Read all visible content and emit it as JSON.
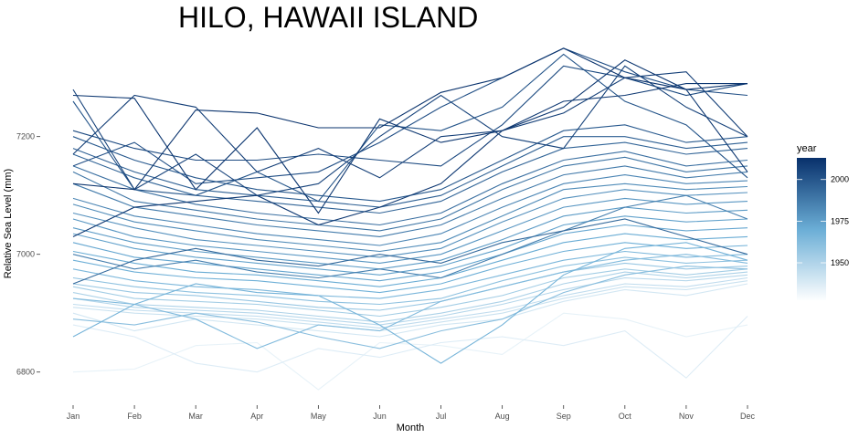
{
  "chart_data": {
    "type": "line",
    "title": "HILO,  HAWAII ISLAND",
    "xlabel": "Month",
    "ylabel": "Relative Sea Level (mm)",
    "categories": [
      "Jan",
      "Feb",
      "Mar",
      "Apr",
      "May",
      "Jun",
      "Jul",
      "Aug",
      "Sep",
      "Oct",
      "Nov",
      "Dec"
    ],
    "yticks": [
      6800,
      7000,
      7200
    ],
    "ylim": [
      6750,
      7370
    ],
    "grid": false,
    "legend": {
      "title": "year",
      "position": "right",
      "type": "colorbar",
      "range": [
        1927,
        2013
      ],
      "ticks": [
        1950,
        1975,
        2000
      ],
      "color_low": "#ffffff",
      "color_high": "#08306b"
    },
    "series": [
      {
        "year": 1929,
        "values": [
          6800,
          6805,
          6845,
          6850,
          6770,
          6850,
          6845,
          6830,
          6900,
          6890,
          6860,
          6880
        ]
      },
      {
        "year": 1932,
        "values": [
          6880,
          6860,
          6815,
          6800,
          6840,
          6825,
          6850,
          6860,
          6845,
          6870,
          6790,
          6895
        ]
      },
      {
        "year": 1935,
        "values": [
          6900,
          6870,
          6890,
          6880,
          6870,
          6860,
          6880,
          6890,
          6920,
          6940,
          6930,
          6950
        ]
      },
      {
        "year": 1938,
        "values": [
          6910,
          6900,
          6895,
          6890,
          6880,
          6870,
          6885,
          6900,
          6925,
          6945,
          6940,
          6955
        ]
      },
      {
        "year": 1941,
        "values": [
          6915,
          6905,
          6900,
          6895,
          6885,
          6875,
          6890,
          6905,
          6930,
          6950,
          6945,
          6960
        ]
      },
      {
        "year": 1944,
        "values": [
          6925,
          6910,
          6905,
          6900,
          6890,
          6880,
          6895,
          6915,
          6940,
          6960,
          6955,
          6965
        ]
      },
      {
        "year": 1947,
        "values": [
          6935,
          6915,
          6910,
          6905,
          6895,
          6885,
          6900,
          6920,
          6950,
          6970,
          6960,
          6970
        ]
      },
      {
        "year": 1950,
        "values": [
          6945,
          6925,
          6920,
          6915,
          6905,
          6895,
          6910,
          6930,
          6960,
          6975,
          6965,
          6975
        ]
      },
      {
        "year": 1953,
        "values": [
          6950,
          6935,
          6930,
          6920,
          6910,
          6905,
          6920,
          6945,
          6970,
          6985,
          6975,
          6980
        ]
      },
      {
        "year": 1956,
        "values": [
          6960,
          6945,
          6935,
          6930,
          6920,
          6915,
          6925,
          6955,
          6980,
          6995,
          6985,
          6990
        ]
      },
      {
        "year": 1958,
        "values": [
          6890,
          6880,
          6900,
          6885,
          6860,
          6840,
          6870,
          6890,
          6935,
          6965,
          6980,
          6975
        ]
      },
      {
        "year": 1960,
        "values": [
          6925,
          6915,
          6890,
          6840,
          6880,
          6870,
          6920,
          6945,
          6970,
          6990,
          7000,
          6985
        ]
      },
      {
        "year": 1962,
        "values": [
          6975,
          6955,
          6945,
          6940,
          6930,
          6925,
          6940,
          6965,
          6990,
          7005,
          6995,
          7000
        ]
      },
      {
        "year": 1964,
        "values": [
          6860,
          6915,
          6950,
          6935,
          6930,
          6880,
          6815,
          6880,
          6965,
          7010,
          7020,
          6990
        ]
      },
      {
        "year": 1966,
        "values": [
          6990,
          6970,
          6960,
          6955,
          6945,
          6935,
          6950,
          6980,
          7005,
          7020,
          7010,
          7015
        ]
      },
      {
        "year": 1968,
        "values": [
          7005,
          6985,
          6970,
          6965,
          6955,
          6945,
          6960,
          6990,
          7020,
          7035,
          7025,
          7030
        ]
      },
      {
        "year": 1970,
        "values": [
          7020,
          6995,
          6985,
          6975,
          6965,
          6955,
          6970,
          7000,
          7035,
          7050,
          7040,
          7045
        ]
      },
      {
        "year": 1972,
        "values": [
          7035,
          7010,
          6995,
          6985,
          6975,
          6965,
          6980,
          7010,
          7050,
          7065,
          7055,
          7060
        ]
      },
      {
        "year": 1974,
        "values": [
          7045,
          7020,
          7005,
          6995,
          6985,
          6975,
          6990,
          7025,
          7065,
          7080,
          7070,
          7075
        ]
      },
      {
        "year": 1976,
        "values": [
          7060,
          7030,
          7015,
          7005,
          6995,
          6985,
          7000,
          7040,
          7080,
          7095,
          7085,
          7090
        ]
      },
      {
        "year": 1978,
        "values": [
          7070,
          7045,
          7025,
          7015,
          7005,
          6995,
          7010,
          7055,
          7095,
          7110,
          7100,
          7105
        ]
      },
      {
        "year": 1980,
        "values": [
          7085,
          7055,
          7040,
          7025,
          7015,
          7005,
          7020,
          7065,
          7110,
          7120,
          7110,
          7115
        ]
      },
      {
        "year": 1982,
        "values": [
          7095,
          7065,
          7050,
          7035,
          7025,
          7015,
          7035,
          7080,
          7120,
          7135,
          7120,
          7125
        ]
      },
      {
        "year": 1984,
        "values": [
          7000,
          6975,
          6990,
          6970,
          6960,
          6975,
          6960,
          7000,
          7040,
          7080,
          7100,
          7060
        ]
      },
      {
        "year": 1986,
        "values": [
          7120,
          7080,
          7065,
          7050,
          7040,
          7030,
          7050,
          7095,
          7135,
          7150,
          7130,
          7140
        ]
      },
      {
        "year": 1988,
        "values": [
          7140,
          7090,
          7075,
          7060,
          7050,
          7040,
          7060,
          7110,
          7150,
          7165,
          7140,
          7150
        ]
      },
      {
        "year": 1990,
        "values": [
          7150,
          7110,
          7085,
          7070,
          7060,
          7050,
          7070,
          7120,
          7160,
          7175,
          7150,
          7160
        ]
      },
      {
        "year": 1992,
        "values": [
          6950,
          6990,
          7010,
          6990,
          6980,
          7000,
          6985,
          7020,
          7040,
          7060,
          7030,
          7000
        ]
      },
      {
        "year": 1994,
        "values": [
          7170,
          7130,
          7100,
          7090,
          7080,
          7070,
          7090,
          7140,
          7180,
          7190,
          7170,
          7180
        ]
      },
      {
        "year": 1996,
        "values": [
          7180,
          7140,
          7110,
          7100,
          7090,
          7080,
          7100,
          7150,
          7200,
          7200,
          7180,
          7190
        ]
      },
      {
        "year": 1998,
        "values": [
          7200,
          7160,
          7130,
          7110,
          7100,
          7090,
          7110,
          7160,
          7210,
          7220,
          7190,
          7200
        ]
      },
      {
        "year": 2000,
        "values": [
          7260,
          7110,
          7100,
          7140,
          7090,
          7220,
          7210,
          7250,
          7340,
          7260,
          7220,
          7130
        ]
      },
      {
        "year": 2002,
        "values": [
          7150,
          7190,
          7120,
          7130,
          7140,
          7190,
          7250,
          7300,
          7350,
          7310,
          7280,
          7270
        ]
      },
      {
        "year": 2004,
        "values": [
          7210,
          7180,
          7160,
          7160,
          7170,
          7160,
          7150,
          7220,
          7320,
          7300,
          7270,
          7290
        ]
      },
      {
        "year": 2006,
        "values": [
          7280,
          7110,
          7170,
          7100,
          7120,
          7200,
          7270,
          7200,
          7180,
          7320,
          7250,
          7200
        ]
      },
      {
        "year": 2008,
        "values": [
          7170,
          7270,
          7250,
          7140,
          7180,
          7130,
          7200,
          7210,
          7240,
          7300,
          7310,
          7200
        ]
      },
      {
        "year": 2010,
        "values": [
          7030,
          7080,
          7090,
          7100,
          7050,
          7080,
          7120,
          7210,
          7260,
          7270,
          7290,
          7290
        ]
      },
      {
        "year": 2011,
        "values": [
          7270,
          7265,
          7110,
          7215,
          7070,
          7230,
          7190,
          7210,
          7250,
          7330,
          7280,
          7140
        ]
      },
      {
        "year": 2012,
        "values": [
          7120,
          7110,
          7245,
          7240,
          7215,
          7215,
          7275,
          7300,
          7350,
          7300,
          7280,
          7290
        ]
      }
    ]
  }
}
